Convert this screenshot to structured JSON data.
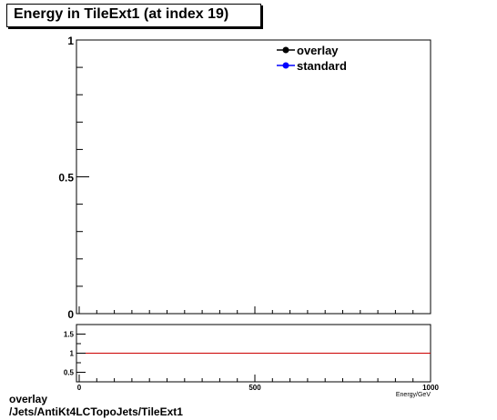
{
  "header": {
    "title": "Energy in TileExt1 (at index 19)"
  },
  "footer": {
    "line1": "overlay",
    "line2": "/Jets/AntiKt4LCTopoJets/TileExt1"
  },
  "chart_data": [
    {
      "type": "line",
      "title": "Energy in TileExt1 (at index 19)",
      "xlabel": "",
      "ylabel": "",
      "xlim": [
        0,
        1000
      ],
      "ylim": [
        0,
        1
      ],
      "y_ticks": [
        {
          "v": 0,
          "label": "0"
        },
        {
          "v": 0.5,
          "label": "0.5"
        },
        {
          "v": 1,
          "label": "1"
        }
      ],
      "legend": "top-right",
      "series": [
        {
          "name": "overlay",
          "color": "#000000",
          "values": []
        },
        {
          "name": "standard",
          "color": "#0000ff",
          "values": []
        }
      ]
    },
    {
      "type": "line",
      "xlabel": "Energy/GeV",
      "xlim": [
        0,
        1000
      ],
      "ylim": [
        0.25,
        1.75
      ],
      "x_ticks": [
        {
          "v": 0,
          "label": "0"
        },
        {
          "v": 500,
          "label": "500"
        },
        {
          "v": 1000,
          "label": "1000"
        }
      ],
      "y_ticks": [
        {
          "v": 0.5,
          "label": "0.5"
        },
        {
          "v": 1,
          "label": "1"
        },
        {
          "v": 1.5,
          "label": "1.5"
        }
      ],
      "reference_line": {
        "y": 1,
        "color": "#cc0000"
      }
    }
  ]
}
